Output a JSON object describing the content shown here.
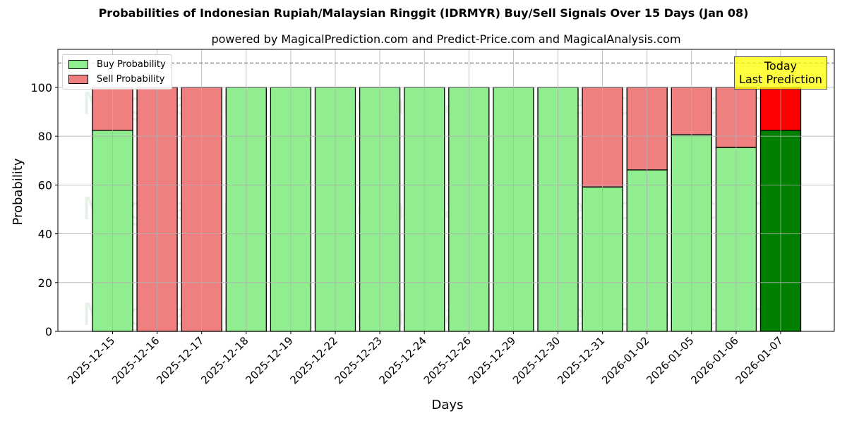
{
  "chart_data": {
    "type": "bar",
    "stacked": true,
    "title": "Probabilities of Indonesian Rupiah/Malaysian Ringgit (IDRMYR) Buy/Sell Signals Over 15 Days (Jan 08)",
    "subtitle": "powered by MagicalPrediction.com and Predict-Price.com and MagicalAnalysis.com",
    "xlabel": "Days",
    "ylabel": "Probability",
    "ylim": [
      0,
      115
    ],
    "yticks": [
      0,
      20,
      40,
      60,
      80,
      100
    ],
    "grid": true,
    "reference_line": 110,
    "categories": [
      "2025-12-15",
      "2025-12-16",
      "2025-12-17",
      "2025-12-18",
      "2025-12-19",
      "2025-12-22",
      "2025-12-23",
      "2025-12-24",
      "2025-12-26",
      "2025-12-29",
      "2025-12-30",
      "2025-12-31",
      "2026-01-02",
      "2026-01-05",
      "2026-01-06",
      "2026-01-07"
    ],
    "series": [
      {
        "name": "Buy Probability",
        "color": "#90ee90",
        "values": [
          82.4,
          0,
          0,
          100,
          100,
          100,
          100,
          100,
          100,
          100,
          100,
          59.2,
          66.2,
          80.6,
          75.4,
          82.4
        ]
      },
      {
        "name": "Sell Probability",
        "color": "#f08080",
        "values": [
          17.6,
          100,
          100,
          0,
          0,
          0,
          0,
          0,
          0,
          0,
          0,
          40.8,
          33.8,
          19.4,
          24.6,
          17.6
        ]
      }
    ],
    "highlight": {
      "index": 15,
      "buy_color": "#008000",
      "sell_color": "#ff0000"
    },
    "legend": {
      "position": "upper left",
      "entries": [
        "Buy Probability",
        "Sell Probability"
      ]
    },
    "annotation": {
      "line1": "Today",
      "line2": "Last Prediction",
      "background": "#ffff00"
    },
    "watermarks": [
      "MagicalAnalysis.com",
      "MagicalPrediction.com"
    ]
  }
}
